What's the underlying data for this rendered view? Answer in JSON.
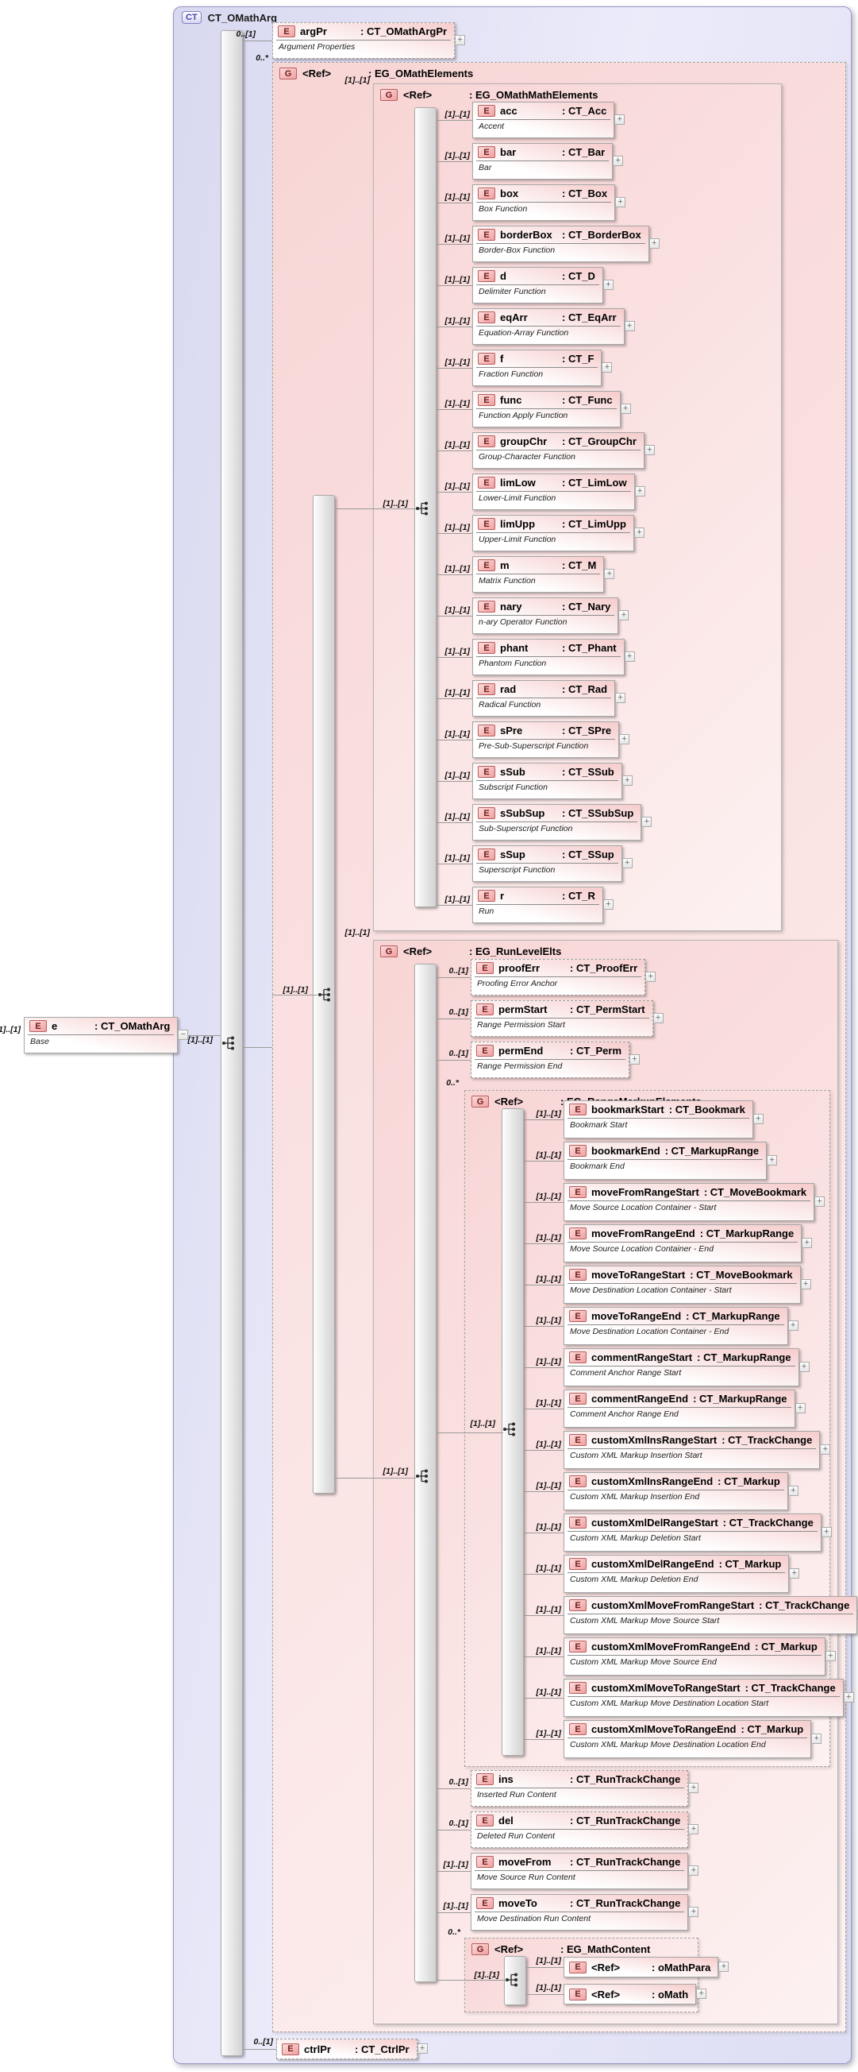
{
  "complex_type": {
    "badge": "CT",
    "name": "CT_OMathArg"
  },
  "root_compositor_cardinality": "[1]..[1]",
  "expand_glyph": "+",
  "source": {
    "badge": "E",
    "name": "e",
    "type_label": ": CT_OMathArg",
    "annotation": "Base",
    "cardinality": "[1]..[1]",
    "collapse_glyph": "−"
  },
  "groups": {
    "omath_elements": {
      "badge": "G",
      "name": "<Ref>",
      "type_label": ": EG_OMathElements",
      "cardinality": "0..*",
      "compositor_cardinality": "[1]..[1]"
    },
    "omath_math_elements": {
      "badge": "G",
      "name": "<Ref>",
      "type_label": ": EG_OMathMathElements",
      "cardinality": "[1]..[1]",
      "compositor_cardinality": "[1]..[1]"
    },
    "run_level_elts": {
      "badge": "G",
      "name": "<Ref>",
      "type_label": ": EG_RunLevelElts",
      "cardinality": "[1]..[1]",
      "compositor_cardinality": "[1]..[1]"
    },
    "range_markup_elements": {
      "badge": "G",
      "name": "<Ref>",
      "type_label": ": EG_RangeMarkupElements",
      "cardinality": "0..*",
      "compositor_cardinality": "[1]..[1]"
    },
    "math_content": {
      "badge": "G",
      "name": "<Ref>",
      "type_label": ": EG_MathContent",
      "cardinality": "0..*",
      "compositor_cardinality": "[1]..[1]"
    }
  },
  "elements": {
    "arg_pr": {
      "badge": "E",
      "name": "argPr",
      "type_label": ": CT_OMathArgPr",
      "annotation": "Argument Properties",
      "cardinality": "0..[1]",
      "optional": true
    },
    "ctrl_pr": {
      "badge": "E",
      "name": "ctrlPr",
      "type_label": ": CT_CtrlPr",
      "cardinality": "0..[1]",
      "optional": true
    },
    "math_elements": [
      {
        "badge": "E",
        "name": "acc",
        "type_label": ": CT_Acc",
        "annotation": "Accent",
        "cardinality": "[1]..[1]"
      },
      {
        "badge": "E",
        "name": "bar",
        "type_label": ": CT_Bar",
        "annotation": "Bar",
        "cardinality": "[1]..[1]"
      },
      {
        "badge": "E",
        "name": "box",
        "type_label": ": CT_Box",
        "annotation": "Box Function",
        "cardinality": "[1]..[1]"
      },
      {
        "badge": "E",
        "name": "borderBox",
        "type_label": ": CT_BorderBox",
        "annotation": "Border-Box Function",
        "cardinality": "[1]..[1]"
      },
      {
        "badge": "E",
        "name": "d",
        "type_label": ": CT_D",
        "annotation": "Delimiter Function",
        "cardinality": "[1]..[1]"
      },
      {
        "badge": "E",
        "name": "eqArr",
        "type_label": ": CT_EqArr",
        "annotation": "Equation-Array Function",
        "cardinality": "[1]..[1]"
      },
      {
        "badge": "E",
        "name": "f",
        "type_label": ": CT_F",
        "annotation": "Fraction Function",
        "cardinality": "[1]..[1]"
      },
      {
        "badge": "E",
        "name": "func",
        "type_label": ": CT_Func",
        "annotation": "Function Apply Function",
        "cardinality": "[1]..[1]"
      },
      {
        "badge": "E",
        "name": "groupChr",
        "type_label": ": CT_GroupChr",
        "annotation": "Group-Character Function",
        "cardinality": "[1]..[1]"
      },
      {
        "badge": "E",
        "name": "limLow",
        "type_label": ": CT_LimLow",
        "annotation": "Lower-Limit Function",
        "cardinality": "[1]..[1]"
      },
      {
        "badge": "E",
        "name": "limUpp",
        "type_label": ": CT_LimUpp",
        "annotation": "Upper-Limit Function",
        "cardinality": "[1]..[1]"
      },
      {
        "badge": "E",
        "name": "m",
        "type_label": ": CT_M",
        "annotation": "Matrix Function",
        "cardinality": "[1]..[1]"
      },
      {
        "badge": "E",
        "name": "nary",
        "type_label": ": CT_Nary",
        "annotation": "n-ary Operator Function",
        "cardinality": "[1]..[1]"
      },
      {
        "badge": "E",
        "name": "phant",
        "type_label": ": CT_Phant",
        "annotation": "Phantom Function",
        "cardinality": "[1]..[1]"
      },
      {
        "badge": "E",
        "name": "rad",
        "type_label": ": CT_Rad",
        "annotation": "Radical Function",
        "cardinality": "[1]..[1]"
      },
      {
        "badge": "E",
        "name": "sPre",
        "type_label": ": CT_SPre",
        "annotation": "Pre-Sub-Superscript Function",
        "cardinality": "[1]..[1]"
      },
      {
        "badge": "E",
        "name": "sSub",
        "type_label": ": CT_SSub",
        "annotation": "Subscript Function",
        "cardinality": "[1]..[1]"
      },
      {
        "badge": "E",
        "name": "sSubSup",
        "type_label": ": CT_SSubSup",
        "annotation": "Sub-Superscript Function",
        "cardinality": "[1]..[1]"
      },
      {
        "badge": "E",
        "name": "sSup",
        "type_label": ": CT_SSup",
        "annotation": "Superscript Function",
        "cardinality": "[1]..[1]"
      },
      {
        "badge": "E",
        "name": "r",
        "type_label": ": CT_R",
        "annotation": "Run",
        "cardinality": "[1]..[1]"
      }
    ],
    "run_level_top": [
      {
        "badge": "E",
        "name": "proofErr",
        "type_label": ": CT_ProofErr",
        "annotation": "Proofing Error Anchor",
        "cardinality": "0..[1]",
        "optional": true
      },
      {
        "badge": "E",
        "name": "permStart",
        "type_label": ": CT_PermStart",
        "annotation": "Range Permission Start",
        "cardinality": "0..[1]",
        "optional": true
      },
      {
        "badge": "E",
        "name": "permEnd",
        "type_label": ": CT_Perm",
        "annotation": "Range Permission End",
        "cardinality": "0..[1]",
        "optional": true
      }
    ],
    "range_markup": [
      {
        "badge": "E",
        "name": "bookmarkStart",
        "type_label": ": CT_Bookmark",
        "annotation": "Bookmark Start",
        "cardinality": "[1]..[1]"
      },
      {
        "badge": "E",
        "name": "bookmarkEnd",
        "type_label": ": CT_MarkupRange",
        "annotation": "Bookmark End",
        "cardinality": "[1]..[1]"
      },
      {
        "badge": "E",
        "name": "moveFromRangeStart",
        "type_label": ": CT_MoveBookmark",
        "annotation": "Move Source Location Container - Start",
        "cardinality": "[1]..[1]"
      },
      {
        "badge": "E",
        "name": "moveFromRangeEnd",
        "type_label": ": CT_MarkupRange",
        "annotation": "Move Source Location Container - End",
        "cardinality": "[1]..[1]"
      },
      {
        "badge": "E",
        "name": "moveToRangeStart",
        "type_label": ": CT_MoveBookmark",
        "annotation": "Move Destination Location Container - Start",
        "cardinality": "[1]..[1]"
      },
      {
        "badge": "E",
        "name": "moveToRangeEnd",
        "type_label": ": CT_MarkupRange",
        "annotation": "Move Destination Location Container - End",
        "cardinality": "[1]..[1]"
      },
      {
        "badge": "E",
        "name": "commentRangeStart",
        "type_label": ": CT_MarkupRange",
        "annotation": "Comment Anchor Range Start",
        "cardinality": "[1]..[1]"
      },
      {
        "badge": "E",
        "name": "commentRangeEnd",
        "type_label": ": CT_MarkupRange",
        "annotation": "Comment Anchor Range End",
        "cardinality": "[1]..[1]"
      },
      {
        "badge": "E",
        "name": "customXmlInsRangeStart",
        "type_label": ": CT_TrackChange",
        "annotation": "Custom XML Markup Insertion Start",
        "cardinality": "[1]..[1]"
      },
      {
        "badge": "E",
        "name": "customXmlInsRangeEnd",
        "type_label": ": CT_Markup",
        "annotation": "Custom XML Markup Insertion End",
        "cardinality": "[1]..[1]"
      },
      {
        "badge": "E",
        "name": "customXmlDelRangeStart",
        "type_label": ": CT_TrackChange",
        "annotation": "Custom XML Markup Deletion Start",
        "cardinality": "[1]..[1]"
      },
      {
        "badge": "E",
        "name": "customXmlDelRangeEnd",
        "type_label": ": CT_Markup",
        "annotation": "Custom XML Markup Deletion End",
        "cardinality": "[1]..[1]"
      },
      {
        "badge": "E",
        "name": "customXmlMoveFromRangeStart",
        "type_label": ": CT_TrackChange",
        "annotation": "Custom XML Markup Move Source Start",
        "cardinality": "[1]..[1]"
      },
      {
        "badge": "E",
        "name": "customXmlMoveFromRangeEnd",
        "type_label": ": CT_Markup",
        "annotation": "Custom XML Markup Move Source End",
        "cardinality": "[1]..[1]"
      },
      {
        "badge": "E",
        "name": "customXmlMoveToRangeStart",
        "type_label": ": CT_TrackChange",
        "annotation": "Custom XML Markup Move Destination Location Start",
        "cardinality": "[1]..[1]"
      },
      {
        "badge": "E",
        "name": "customXmlMoveToRangeEnd",
        "type_label": ": CT_Markup",
        "annotation": "Custom XML Markup Move Destination Location End",
        "cardinality": "[1]..[1]"
      }
    ],
    "run_level_bottom": [
      {
        "badge": "E",
        "name": "ins",
        "type_label": ": CT_RunTrackChange",
        "annotation": "Inserted Run Content",
        "cardinality": "0..[1]",
        "optional": true
      },
      {
        "badge": "E",
        "name": "del",
        "type_label": ": CT_RunTrackChange",
        "annotation": "Deleted Run Content",
        "cardinality": "0..[1]",
        "optional": true
      },
      {
        "badge": "E",
        "name": "moveFrom",
        "type_label": ": CT_RunTrackChange",
        "annotation": "Move Source Run Content",
        "cardinality": "[1]..[1]"
      },
      {
        "badge": "E",
        "name": "moveTo",
        "type_label": ": CT_RunTrackChange",
        "annotation": "Move Destination Run Content",
        "cardinality": "[1]..[1]"
      }
    ],
    "math_content_refs": [
      {
        "badge": "E",
        "name": "<Ref>",
        "type_label": ": oMathPara",
        "cardinality": "[1]..[1]"
      },
      {
        "badge": "E",
        "name": "<Ref>",
        "type_label": ": oMath",
        "cardinality": "[1]..[1]"
      }
    ]
  }
}
